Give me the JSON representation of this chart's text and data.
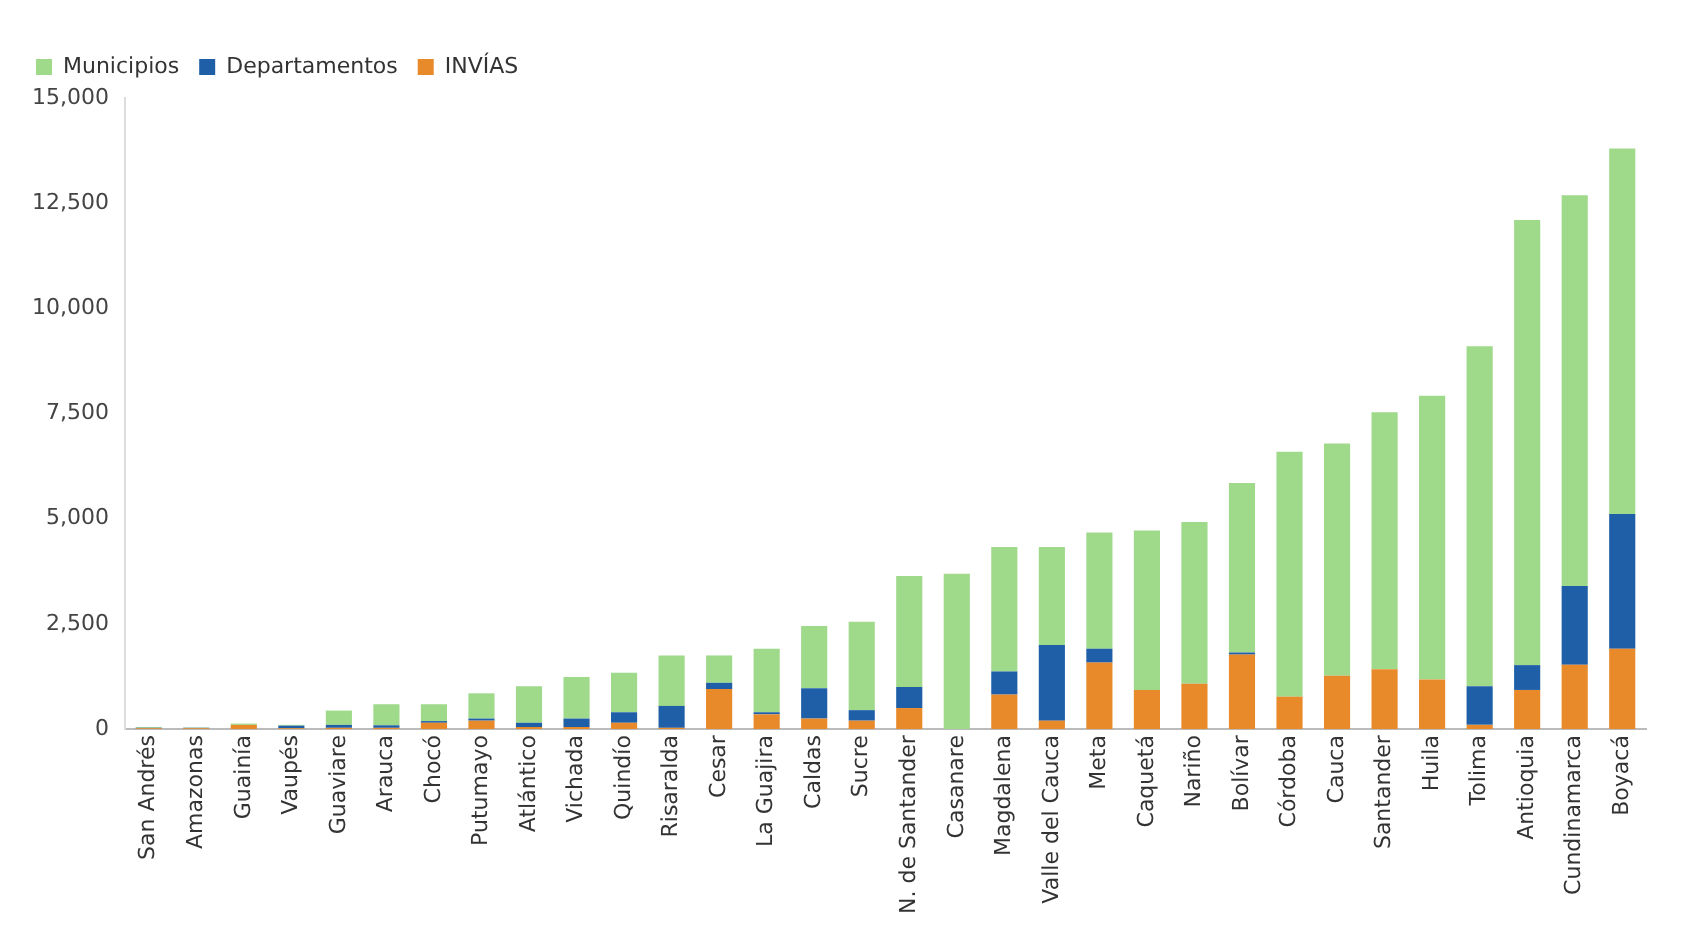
{
  "chart_data": {
    "type": "bar",
    "stacked": true,
    "categories": [
      "San Andrés",
      "Amazonas",
      "Guainía",
      "Vaupés",
      "Guaviare",
      "Arauca",
      "Chocó",
      "Putumayo",
      "Atlántico",
      "Vichada",
      "Quindío",
      "Risaralda",
      "Cesar",
      "La Guajira",
      "Caldas",
      "Sucre",
      "N. de Santander",
      "Casanare",
      "Magdalena",
      "Valle del Cauca",
      "Meta",
      "Caquetá",
      "Nariño",
      "Bolívar",
      "Córdoba",
      "Cauca",
      "Santander",
      "Huila",
      "Tolima",
      "Antioquia",
      "Cundinamarca",
      "Boyacá"
    ],
    "series": [
      {
        "name": "INVÍAS",
        "color": "#e8892a",
        "values": [
          20,
          20,
          100,
          20,
          30,
          30,
          150,
          200,
          50,
          50,
          150,
          30,
          950,
          350,
          250,
          200,
          500,
          0,
          820,
          200,
          1580,
          930,
          1080,
          1770,
          770,
          1270,
          1420,
          1180,
          100,
          930,
          1530,
          1910
        ]
      },
      {
        "name": "Departamentos",
        "color": "#1f5fa8",
        "values": [
          10,
          10,
          0,
          60,
          70,
          60,
          40,
          50,
          100,
          200,
          250,
          520,
          150,
          50,
          720,
          250,
          500,
          0,
          550,
          1800,
          330,
          0,
          0,
          50,
          0,
          0,
          0,
          0,
          920,
          590,
          1870,
          3200
        ]
      },
      {
        "name": "Municipios",
        "color": "#9fd98a",
        "values": [
          20,
          10,
          30,
          20,
          340,
          500,
          400,
          600,
          870,
          990,
          940,
          1200,
          650,
          1510,
          1480,
          2100,
          2640,
          3690,
          2960,
          2330,
          2760,
          3790,
          3840,
          4030,
          5820,
          5520,
          6110,
          6740,
          8080,
          10580,
          9290,
          8690
        ]
      }
    ],
    "ylim": [
      0,
      15000
    ],
    "yticks": [
      0,
      {
        "value": 2500,
        "label": "2,500"
      },
      {
        "value": 5000,
        "label": "5,000"
      },
      {
        "value": 7500,
        "label": "7,500"
      },
      {
        "value": 10000,
        "label": "10,000"
      },
      {
        "value": 12500,
        "label": "12,500"
      },
      {
        "value": 15000,
        "label": "15,000"
      }
    ],
    "grid": false,
    "legend": "top left"
  }
}
